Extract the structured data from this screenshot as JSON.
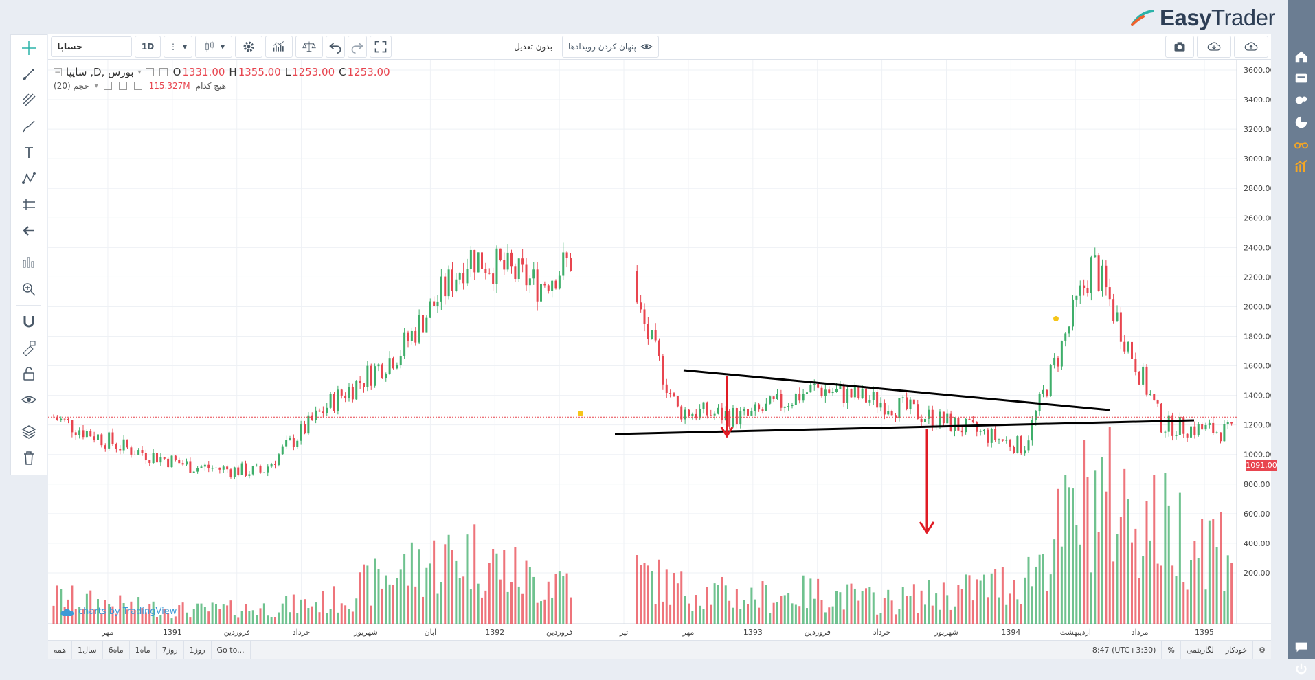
{
  "brand": {
    "name_part1": "Easy",
    "name_part2": "Trader"
  },
  "toolbar": {
    "symbol": "خسابا",
    "interval": "1D",
    "adjustment": "بدون تعدیل",
    "hide_events": "پنهان کردن رویدادها"
  },
  "legend": {
    "title": "سایپا ,D, بورس",
    "o_label": "O",
    "o_value": "1331.00",
    "h_label": "H",
    "h_value": "1355.00",
    "l_label": "L",
    "l_value": "1253.00",
    "c_label": "C",
    "c_value": "1253.00",
    "volume_title": "حجم (20)",
    "volume_value": "115.327M",
    "volume_note": "هیچ کدام"
  },
  "price_tag": "1091.00",
  "watermark": "charts by TradingView",
  "price_axis": [
    "3600.00",
    "3400.00",
    "3200.00",
    "3000.00",
    "2800.00",
    "2600.00",
    "2400.00",
    "2200.00",
    "2000.00",
    "1800.00",
    "1600.00",
    "1400.00",
    "1200.00",
    "1000.00",
    "800.00",
    "600.00",
    "400.00",
    "200.00"
  ],
  "time_axis": [
    "مهر",
    "1391",
    "فروردین",
    "خرداد",
    "شهریور",
    "آبان",
    "1392",
    "فروردین",
    "تیر",
    "مهر",
    "1393",
    "فروردین",
    "خرداد",
    "شهریور",
    "1394",
    "اردیبهشت",
    "مرداد",
    "1395"
  ],
  "bottom": {
    "ranges": [
      "همه",
      "1سال",
      "6ماه",
      "1ماه",
      "7روز",
      "1روز",
      "Go to..."
    ],
    "time": "8:47",
    "tz": "(UTC+3:30)",
    "percent": "%",
    "log": "لگاریتمی",
    "auto": "خودکار"
  },
  "colors": {
    "up": "#3fae6a",
    "down": "#e8454f",
    "accent": "#3c9ad6",
    "rail": "#6b7d92"
  },
  "chart_data": {
    "type": "line",
    "title": "سایپا ,D, بورس",
    "ylim": [
      0,
      3600
    ],
    "x": [
      "مهر 1390",
      "1391",
      "فروردین 1391",
      "خرداد 1391",
      "شهریور 1391",
      "آبان 1391",
      "1392",
      "فروردین 1392",
      "تیر 1392",
      "مهر 1392",
      "1393",
      "فروردین 1393",
      "خرداد 1393",
      "شهریور 1393",
      "1394",
      "اردیبهشت 1394",
      "مرداد 1394",
      "1395"
    ],
    "series": [
      {
        "values": [
          1250,
          1050,
          920,
          880,
          1350,
          1700,
          2350,
          2150,
          2500,
          1300,
          1250,
          1450,
          1350,
          1200,
          1050,
          2300,
          1200,
          1150
        ]
      }
    ],
    "volume": [
      60,
      40,
      30,
      35,
      50,
      120,
      160,
      90,
      140,
      80,
      60,
      70,
      50,
      70,
      100,
      300,
      220,
      180
    ]
  }
}
